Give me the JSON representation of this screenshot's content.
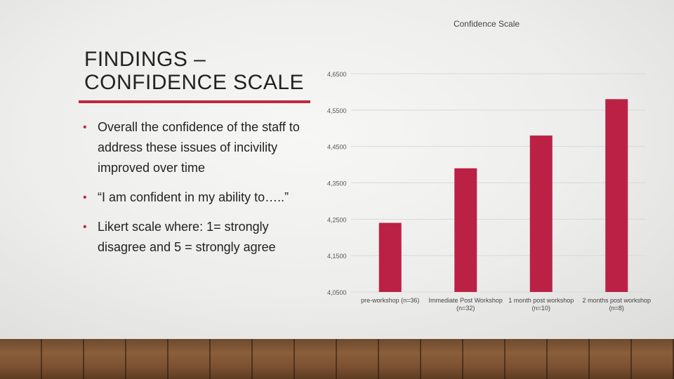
{
  "slide": {
    "title": "FINDINGS – CONFIDENCE SCALE",
    "bullets": [
      "Overall the confidence of the staff to address these issues of incivility improved over time",
      "“I am confident in my ability to…..”",
      "Likert scale where: 1= strongly disagree and 5 = strongly agree"
    ],
    "bullet_glyph": "•",
    "accent_color": "#c0283f"
  },
  "chart_data": {
    "type": "bar",
    "title": "Confidence Scale",
    "categories": [
      [
        "pre-workshop (n=36)"
      ],
      [
        "Immediate Post Workshop",
        "(n=32)"
      ],
      [
        "1 month post workshop",
        "(n=10)"
      ],
      [
        "2 months post workshop",
        "(n=8)"
      ]
    ],
    "values": [
      4.24,
      4.39,
      4.48,
      4.58
    ],
    "ylim": [
      4.05,
      4.65
    ],
    "yticks": [
      "4,6500",
      "4,5500",
      "4,4500",
      "4,3500",
      "4,2500",
      "4,1500",
      "4,0500"
    ],
    "ytick_values": [
      4.65,
      4.55,
      4.45,
      4.35,
      4.25,
      4.15,
      4.05
    ],
    "bar_color": "#bb2144",
    "grid": true
  }
}
